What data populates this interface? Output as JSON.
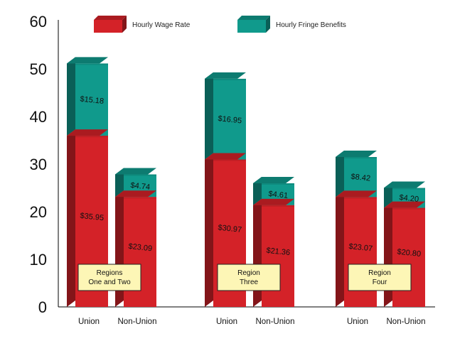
{
  "chart_data": {
    "type": "bar",
    "stacked": true,
    "ylim": [
      0,
      60
    ],
    "yticks": [
      0,
      10,
      20,
      30,
      40,
      50,
      60
    ],
    "grid": false,
    "legend_position": "top",
    "colors": {
      "wage": "#d42228",
      "fringe": "#109a8c",
      "region_box": "#fdf6b6"
    },
    "categories": [
      "Union",
      "Non-Union",
      "Union",
      "Non-Union",
      "Union",
      "Non-Union"
    ],
    "groups": [
      {
        "label_lines": [
          "Regions",
          "One and Two"
        ]
      },
      {
        "label_lines": [
          "Region",
          "Three"
        ]
      },
      {
        "label_lines": [
          "Region",
          "Four"
        ]
      }
    ],
    "series": [
      {
        "name": "Hourly Wage Rate",
        "values": [
          35.95,
          23.09,
          30.97,
          21.36,
          23.07,
          20.8
        ],
        "labels": [
          "$35.95",
          "$23.09",
          "$30.97",
          "$21.36",
          "$23.07",
          "$20.80"
        ]
      },
      {
        "name": "Hourly Fringe Benefits",
        "values": [
          15.18,
          4.74,
          16.95,
          4.61,
          8.42,
          4.2
        ],
        "labels": [
          "$15.18",
          "$4.74",
          "$16.95",
          "$4.61",
          "$8.42",
          "$4.20"
        ]
      }
    ]
  }
}
